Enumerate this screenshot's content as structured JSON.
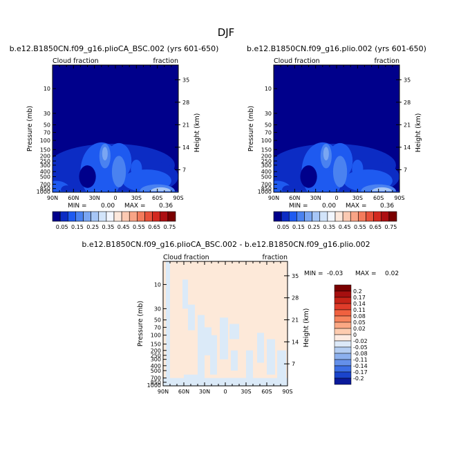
{
  "figure": {
    "title": "DJF"
  },
  "chart_data": [
    {
      "type": "heatmap",
      "id": "left",
      "title": "b.e12.B1850CN.f09_g16.plioCA_BSC.002 (yrs 601-650)",
      "left_label": "Cloud fraction",
      "right_label": "fraction",
      "ylabel": "Pressure (mb)",
      "ylabel2": "Height (km)",
      "x_ticks": [
        "90N",
        "60N",
        "30N",
        "0",
        "30S",
        "60S",
        "90S"
      ],
      "x_range": [
        90,
        -90
      ],
      "y_ticks": [
        "10",
        "30",
        "50",
        "70",
        "100",
        "150",
        "200",
        "250",
        "300",
        "400",
        "500",
        "700",
        "850",
        "1000"
      ],
      "y_range_mb": [
        1000,
        3.5
      ],
      "height_ticks": [
        "35",
        "28",
        "21",
        "14",
        "7"
      ],
      "min_label": "MIN =",
      "min_value": "0.00",
      "max_label": "MAX =",
      "max_value": "0.36",
      "colorbar_labels": [
        "0.05",
        "0.15",
        "0.25",
        "0.35",
        "0.45",
        "0.55",
        "0.65",
        "0.75"
      ],
      "colorbar_colors": [
        "#00008b",
        "#0c2cc4",
        "#1e5af0",
        "#4a82f0",
        "#7aa6f2",
        "#a6c6f6",
        "#d2e4fa",
        "#f2f6fe",
        "#fde8dc",
        "#fbc9b2",
        "#f8a486",
        "#f37b5c",
        "#e8513a",
        "#d3291f",
        "#ad0f12",
        "#7a0000"
      ]
    },
    {
      "type": "heatmap",
      "id": "right",
      "title": "b.e12.B1850CN.f09_g16.plio.002 (yrs 601-650)",
      "left_label": "Cloud fraction",
      "right_label": "fraction",
      "ylabel": "Pressure (mb)",
      "ylabel2": "Height (km)",
      "x_ticks": [
        "90N",
        "60N",
        "30N",
        "0",
        "30S",
        "60S",
        "90S"
      ],
      "x_range": [
        90,
        -90
      ],
      "y_ticks": [
        "10",
        "30",
        "50",
        "70",
        "100",
        "150",
        "200",
        "250",
        "300",
        "400",
        "500",
        "700",
        "850",
        "1000"
      ],
      "y_range_mb": [
        1000,
        3.5
      ],
      "height_ticks": [
        "35",
        "28",
        "21",
        "14",
        "7"
      ],
      "min_label": "MIN =",
      "min_value": "0.00",
      "max_label": "MAX =",
      "max_value": "0.36",
      "colorbar_labels": [
        "0.05",
        "0.15",
        "0.25",
        "0.35",
        "0.45",
        "0.55",
        "0.65",
        "0.75"
      ],
      "colorbar_colors": [
        "#00008b",
        "#0c2cc4",
        "#1e5af0",
        "#4a82f0",
        "#7aa6f2",
        "#a6c6f6",
        "#d2e4fa",
        "#f2f6fe",
        "#fde8dc",
        "#fbc9b2",
        "#f8a486",
        "#f37b5c",
        "#e8513a",
        "#d3291f",
        "#ad0f12",
        "#7a0000"
      ]
    },
    {
      "type": "heatmap",
      "id": "diff",
      "title": "b.e12.B1850CN.f09_g16.plioCA_BSC.002 - b.e12.B1850CN.f09_g16.plio.002",
      "left_label": "Cloud fraction",
      "right_label": "fraction",
      "ylabel": "Pressure (mb)",
      "ylabel2": "Height (km)",
      "x_ticks": [
        "90N",
        "60N",
        "30N",
        "0",
        "30S",
        "60S",
        "90S"
      ],
      "x_range": [
        90,
        -90
      ],
      "y_ticks": [
        "10",
        "30",
        "50",
        "70",
        "100",
        "150",
        "200",
        "250",
        "300",
        "400",
        "500",
        "700",
        "850",
        "1000"
      ],
      "y_range_mb": [
        1000,
        3.5
      ],
      "height_ticks": [
        "35",
        "28",
        "21",
        "14",
        "7"
      ],
      "min_label": "MIN =",
      "min_value": "-0.03",
      "max_label": "MAX =",
      "max_value": "0.02",
      "colorbar_labels": [
        "0.2",
        "0.17",
        "0.14",
        "0.11",
        "0.08",
        "0.05",
        "0.02",
        "0",
        "-0.02",
        "-0.05",
        "-0.08",
        "-0.11",
        "-0.14",
        "-0.17",
        "-0.2"
      ],
      "colorbar_colors": [
        "#7a0000",
        "#a50f0f",
        "#c62418",
        "#e03c2a",
        "#f0613f",
        "#f7855e",
        "#fba884",
        "#fdccb0",
        "#fdebe2",
        "#dce9f8",
        "#b4cdf2",
        "#8cb0ee",
        "#6490ea",
        "#3c6ee4",
        "#1a44cc",
        "#0a1a9a"
      ],
      "fill_colors": {
        "background": "#fde9d9",
        "patches": "#dbeaf8"
      }
    }
  ]
}
